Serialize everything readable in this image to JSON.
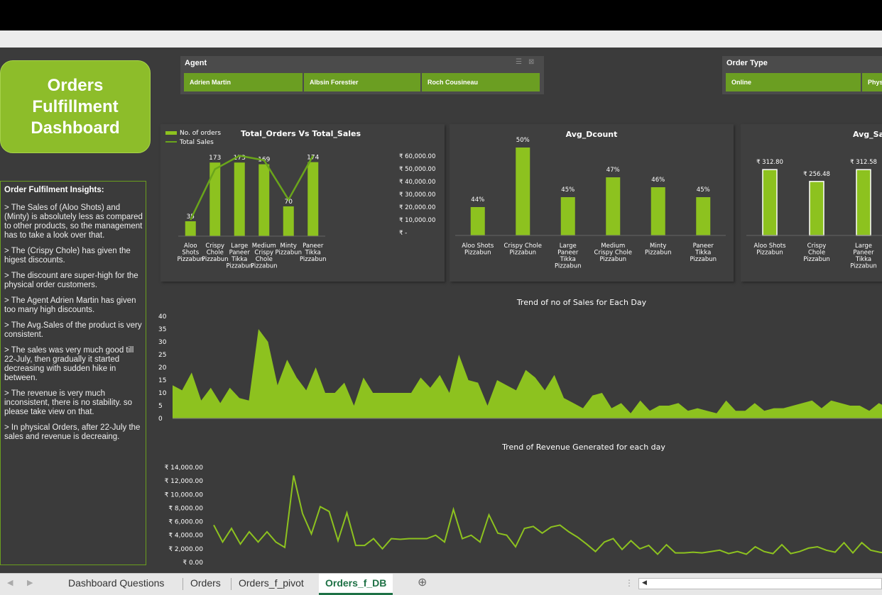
{
  "dashboard": {
    "title": "Orders\nFulfillment\nDashboard"
  },
  "slicers": {
    "agent": {
      "label": "Agent",
      "items": [
        "Adrien Martin",
        "Albsin Forestier",
        "Roch Cousineau"
      ]
    },
    "order_type": {
      "label": "Order Type",
      "items": [
        "Online",
        "Phys"
      ]
    }
  },
  "insights": {
    "title": "Order Fulfilment Insights:",
    "points": [
      "> The Sales of (Aloo Shots) and (Minty) is absolutely less as compared to other products, so the management has to take a look over that.",
      "> The (Crispy Chole) has given the higest discounts.",
      "> The discount are super-high for the physical order customers.",
      "> The Agent Adrien Martin has given too many high discounts.",
      "> The Avg.Sales of the product is very consistent.",
      "> The sales was very much good till 22-July, then gradually it started decreasing with sudden hike in between.",
      "> The revenue is very much inconsistent, there is no stability. so please take view on that.",
      "> In physical Orders, after 22-July the sales and revenue is decreaing."
    ]
  },
  "colors": {
    "accent": "#8dbd2a",
    "bar": "#8dc21f",
    "panel": "#3f3f3f",
    "bg": "#3b3b3b",
    "tab_active": "#1e7145"
  },
  "chart_data": [
    {
      "type": "bar",
      "title": "Total_Orders Vs Total_Sales",
      "categories": [
        [
          "Aloo",
          "Shots",
          "Pizzabun"
        ],
        [
          "Crispy",
          "Chole",
          "Pizzabun"
        ],
        [
          "Large",
          "Paneer",
          "Tikka",
          "Pizzabun"
        ],
        [
          "Medium",
          "Crispy",
          "Chole",
          "Pizzabun"
        ],
        [
          "Minty",
          "Pizzabun"
        ],
        [
          "Paneer",
          "Tikka",
          "Pizzabun"
        ]
      ],
      "series": [
        {
          "name": "No. of orders",
          "kind": "bar",
          "values": [
            35,
            173,
            173,
            169,
            70,
            174
          ]
        },
        {
          "name": "Total Sales",
          "kind": "line",
          "values": [
            11000,
            45000,
            54000,
            51000,
            24500,
            54000
          ]
        }
      ],
      "y2ticks": [
        "₹ 60,000.00",
        "₹ 50,000.00",
        "₹ 40,000.00",
        "₹ 30,000.00",
        "₹ 20,000.00",
        "₹ 10,000.00",
        "₹ -"
      ],
      "y2lim": [
        0,
        60000
      ]
    },
    {
      "type": "bar",
      "title": "Avg_Dcount",
      "categories": [
        [
          "Aloo Shots",
          "Pizzabun"
        ],
        [
          "Crispy Chole",
          "Pizzabun"
        ],
        [
          "Large",
          "Paneer",
          "Tikka",
          "Pizzabun"
        ],
        [
          "Medium",
          "Crispy Chole",
          "Pizzabun"
        ],
        [
          "Minty",
          "Pizzabun"
        ],
        [
          "Paneer",
          "Tikka",
          "Pizzabun"
        ]
      ],
      "values": [
        44,
        50,
        45,
        47,
        46,
        45
      ],
      "labels": [
        "44%",
        "50%",
        "45%",
        "47%",
        "46%",
        "45%"
      ]
    },
    {
      "type": "bar",
      "title": "Avg_Sa",
      "categories": [
        [
          "Aloo Shots",
          "Pizzabun"
        ],
        [
          "Crispy",
          "Chole",
          "Pizzabun"
        ],
        [
          "Large",
          "Paneer",
          "Tikka",
          "Pizzabun"
        ]
      ],
      "values": [
        312.8,
        256.48,
        312.58
      ],
      "labels": [
        "₹ 312.80",
        "₹ 256.48",
        "₹ 312.58"
      ]
    },
    {
      "type": "area",
      "title": "Trend of no of Sales for Each Day",
      "yticks": [
        "40",
        "35",
        "30",
        "25",
        "20",
        "15",
        "10",
        "5",
        "0"
      ],
      "ylim": [
        0,
        40
      ],
      "values": [
        13,
        11,
        18,
        7,
        12,
        6,
        12,
        8,
        7,
        35,
        30,
        13,
        23,
        16,
        11,
        20,
        10,
        10,
        14,
        5,
        16,
        10,
        10,
        10,
        10,
        10,
        16,
        12,
        17,
        10,
        25,
        15,
        14,
        5,
        15,
        13,
        11,
        19,
        16,
        11,
        17,
        8,
        6,
        4,
        9,
        10,
        4,
        6,
        2,
        7,
        3,
        5,
        5,
        6,
        3,
        4,
        3,
        2,
        7,
        3,
        3,
        6,
        3,
        4,
        4,
        5,
        6,
        7,
        4,
        7,
        6,
        5,
        5,
        3,
        6,
        4
      ]
    },
    {
      "type": "line",
      "title": "Trend of Revenue Generated for each day",
      "yticks": [
        "₹ 14,000.00",
        "₹ 12,000.00",
        "₹ 10,000.00",
        "₹ 8,000.00",
        "₹ 6,000.00",
        "₹ 4,000.00",
        "₹ 2,000.00",
        "₹ 0.00"
      ],
      "ylim": [
        0,
        14000
      ],
      "values": [
        5500,
        3000,
        5000,
        2700,
        4500,
        3000,
        4500,
        3000,
        2200,
        12800,
        7200,
        4200,
        8200,
        7500,
        3200,
        7300,
        2500,
        2500,
        3500,
        2000,
        3500,
        3400,
        3500,
        3500,
        3500,
        4000,
        3000,
        7800,
        3500,
        4000,
        3000,
        7000,
        4300,
        4000,
        2300,
        5000,
        5300,
        4300,
        5200,
        5500,
        4500,
        3700,
        2700,
        1600,
        3000,
        3500,
        1900,
        3200,
        2000,
        2500,
        1200,
        2600,
        1400,
        1400,
        1500,
        1400,
        1600,
        1800,
        1300,
        1600,
        1200,
        2300,
        1600,
        1300,
        2600,
        1300,
        1600,
        2100,
        2300,
        1800,
        1500,
        2900,
        1400,
        2900,
        1800,
        1500,
        1300
      ]
    }
  ],
  "sheet_tabs": [
    "Dashboard Questions",
    "Orders",
    "Orders_f_pivot",
    "Orders_f_DB"
  ],
  "active_tab": "Orders_f_DB"
}
